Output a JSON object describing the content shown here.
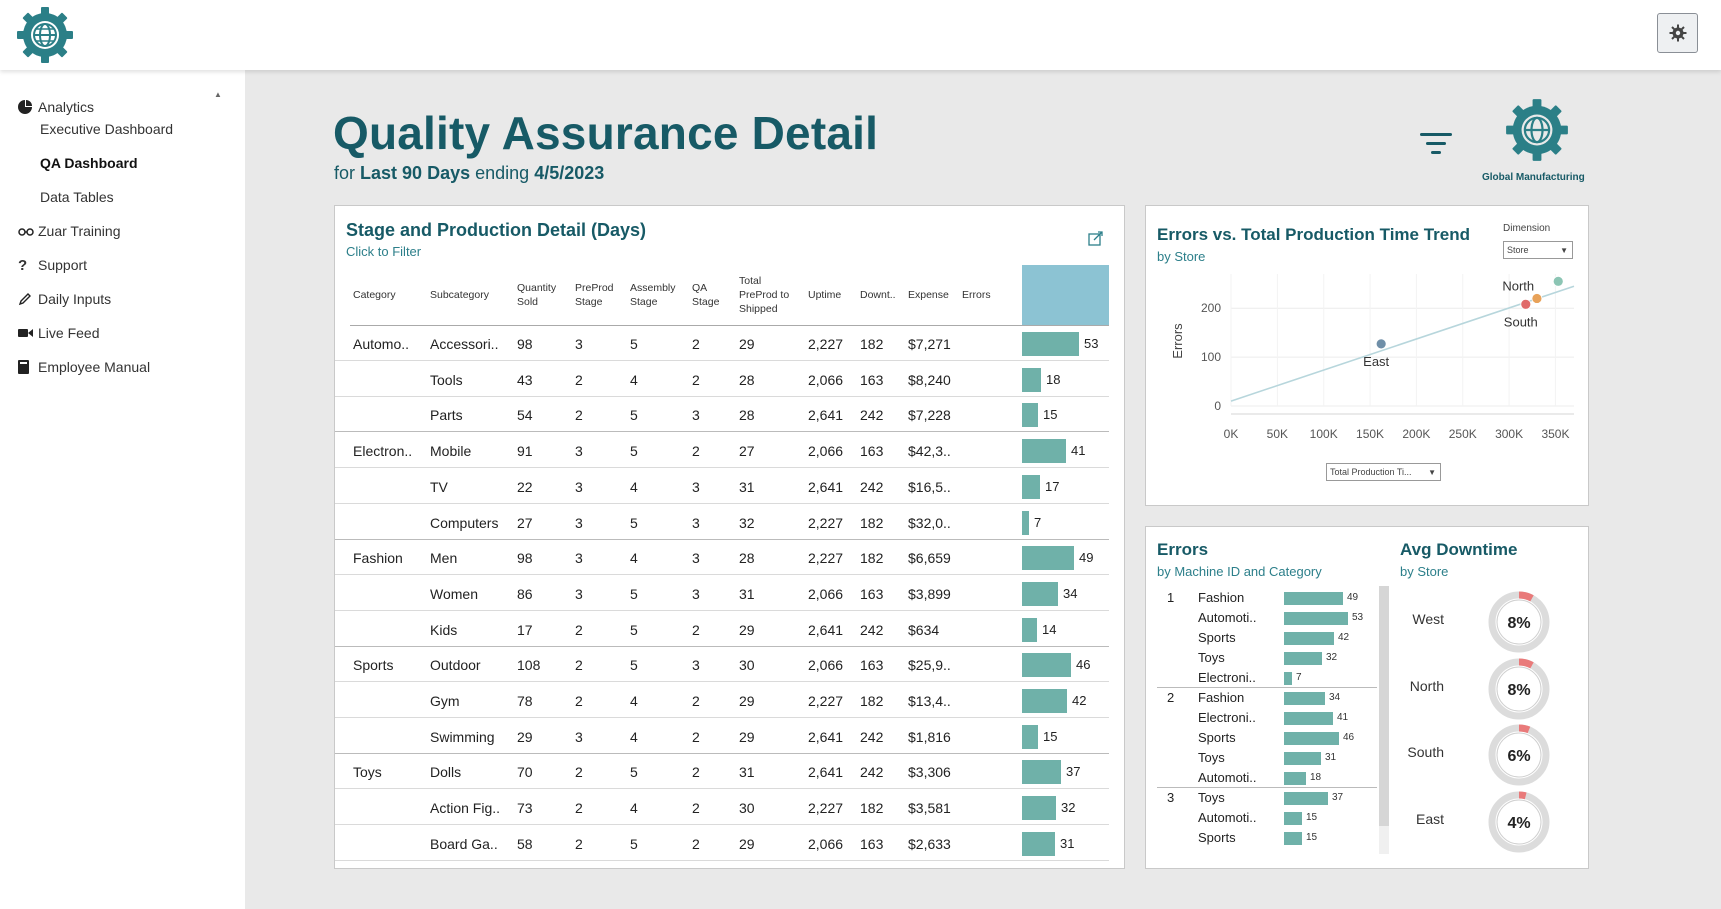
{
  "sidebar": {
    "items": [
      {
        "label": "Analytics",
        "icon": "pie-chart-icon"
      },
      {
        "label": "Executive Dashboard"
      },
      {
        "label": "QA Dashboard"
      },
      {
        "label": "Data Tables"
      },
      {
        "label": "Zuar Training",
        "icon": "glasses-icon"
      },
      {
        "label": "Support",
        "icon": "question-icon"
      },
      {
        "label": "Daily Inputs",
        "icon": "pencil-icon"
      },
      {
        "label": "Live Feed",
        "icon": "video-icon"
      },
      {
        "label": "Employee Manual",
        "icon": "book-icon"
      }
    ]
  },
  "page": {
    "title": "Quality Assurance Detail",
    "subtitle_for": "for",
    "subtitle_period": "Last 90 Days",
    "subtitle_ending": "ending",
    "subtitle_date": "4/5/2023",
    "brand": "Global Manufacturing"
  },
  "stage_panel": {
    "title": "Stage and Production Detail (Days)",
    "subtitle": "Click to Filter",
    "headers": [
      "Category",
      "Subcategory",
      "Quantity Sold",
      "PreProd Stage",
      "Assembly Stage",
      "QA Stage",
      "Total PreProd to Shipped",
      "Uptime",
      "Downt..",
      "Expense",
      "Errors"
    ],
    "rows": [
      {
        "category": "Automo..",
        "sub": "Accessori..",
        "qty": "98",
        "pre": "3",
        "asm": "5",
        "qa": "2",
        "total": "29",
        "uptime": "2,227",
        "down": "182",
        "expense": "$7,271",
        "errors": 53
      },
      {
        "category": "",
        "sub": "Tools",
        "qty": "43",
        "pre": "2",
        "asm": "4",
        "qa": "2",
        "total": "28",
        "uptime": "2,066",
        "down": "163",
        "expense": "$8,240",
        "errors": 18
      },
      {
        "category": "",
        "sub": "Parts",
        "qty": "54",
        "pre": "2",
        "asm": "5",
        "qa": "3",
        "total": "28",
        "uptime": "2,641",
        "down": "242",
        "expense": "$7,228",
        "errors": 15
      },
      {
        "category": "Electron..",
        "sub": "Mobile",
        "qty": "91",
        "pre": "3",
        "asm": "5",
        "qa": "2",
        "total": "27",
        "uptime": "2,066",
        "down": "163",
        "expense": "$42,3..",
        "errors": 41
      },
      {
        "category": "",
        "sub": "TV",
        "qty": "22",
        "pre": "3",
        "asm": "4",
        "qa": "3",
        "total": "31",
        "uptime": "2,641",
        "down": "242",
        "expense": "$16,5..",
        "errors": 17
      },
      {
        "category": "",
        "sub": "Computers",
        "qty": "27",
        "pre": "3",
        "asm": "5",
        "qa": "3",
        "total": "32",
        "uptime": "2,227",
        "down": "182",
        "expense": "$32,0..",
        "errors": 7
      },
      {
        "category": "Fashion",
        "sub": "Men",
        "qty": "98",
        "pre": "3",
        "asm": "4",
        "qa": "3",
        "total": "28",
        "uptime": "2,227",
        "down": "182",
        "expense": "$6,659",
        "errors": 49
      },
      {
        "category": "",
        "sub": "Women",
        "qty": "86",
        "pre": "3",
        "asm": "5",
        "qa": "3",
        "total": "31",
        "uptime": "2,066",
        "down": "163",
        "expense": "$3,899",
        "errors": 34
      },
      {
        "category": "",
        "sub": "Kids",
        "qty": "17",
        "pre": "2",
        "asm": "5",
        "qa": "2",
        "total": "29",
        "uptime": "2,641",
        "down": "242",
        "expense": "$634",
        "errors": 14
      },
      {
        "category": "Sports",
        "sub": "Outdoor",
        "qty": "108",
        "pre": "2",
        "asm": "5",
        "qa": "3",
        "total": "30",
        "uptime": "2,066",
        "down": "163",
        "expense": "$25,9..",
        "errors": 46
      },
      {
        "category": "",
        "sub": "Gym",
        "qty": "78",
        "pre": "2",
        "asm": "4",
        "qa": "2",
        "total": "29",
        "uptime": "2,227",
        "down": "182",
        "expense": "$13,4..",
        "errors": 42
      },
      {
        "category": "",
        "sub": "Swimming",
        "qty": "29",
        "pre": "3",
        "asm": "4",
        "qa": "2",
        "total": "29",
        "uptime": "2,641",
        "down": "242",
        "expense": "$1,816",
        "errors": 15
      },
      {
        "category": "Toys",
        "sub": "Dolls",
        "qty": "70",
        "pre": "2",
        "asm": "5",
        "qa": "2",
        "total": "31",
        "uptime": "2,641",
        "down": "242",
        "expense": "$3,306",
        "errors": 37
      },
      {
        "category": "",
        "sub": "Action Fig..",
        "qty": "73",
        "pre": "2",
        "asm": "4",
        "qa": "2",
        "total": "30",
        "uptime": "2,227",
        "down": "182",
        "expense": "$3,581",
        "errors": 32
      },
      {
        "category": "",
        "sub": "Board Ga..",
        "qty": "58",
        "pre": "2",
        "asm": "5",
        "qa": "2",
        "total": "29",
        "uptime": "2,066",
        "down": "163",
        "expense": "$2,633",
        "errors": 31
      }
    ]
  },
  "trend_panel": {
    "title": "Errors vs. Total Production Time Trend",
    "subtitle": "by Store",
    "dimension_label": "Dimension",
    "dimension_value": "Store",
    "measure_value": "Total Production Ti..."
  },
  "chart_data": [
    {
      "type": "scatter",
      "title": "Errors vs. Total Production Time Trend",
      "ylabel": "Errors",
      "xticks": [
        "0K",
        "50K",
        "100K",
        "150K",
        "200K",
        "250K",
        "300K",
        "350K"
      ],
      "yticks": [
        "0",
        "100",
        "200"
      ],
      "xlim": [
        0,
        370000
      ],
      "ylim": [
        0,
        270
      ],
      "points": [
        {
          "label": "North",
          "x": 353000,
          "y": 255,
          "color": "#8cc5b4"
        },
        {
          "label": "",
          "x": 330000,
          "y": 220,
          "color": "#e8a25a"
        },
        {
          "label": "South",
          "x": 318000,
          "y": 208,
          "color": "#e06a6a"
        },
        {
          "label": "East",
          "x": 162000,
          "y": 127,
          "color": "#6f8fa8"
        }
      ],
      "trend": {
        "x0": 0,
        "y0": 10,
        "x1": 370000,
        "y1": 245
      }
    },
    {
      "type": "bar",
      "title": "Errors",
      "subtitle": "by Machine ID and Category",
      "xlim": [
        0,
        60
      ],
      "groups": [
        {
          "id": "1",
          "items": [
            {
              "label": "Fashion",
              "value": 49
            },
            {
              "label": "Automoti..",
              "value": 53
            },
            {
              "label": "Sports",
              "value": 42
            },
            {
              "label": "Toys",
              "value": 32
            },
            {
              "label": "Electroni..",
              "value": 7
            }
          ]
        },
        {
          "id": "2",
          "items": [
            {
              "label": "Fashion",
              "value": 34
            },
            {
              "label": "Electroni..",
              "value": 41
            },
            {
              "label": "Sports",
              "value": 46
            },
            {
              "label": "Toys",
              "value": 31
            },
            {
              "label": "Automoti..",
              "value": 18
            }
          ]
        },
        {
          "id": "3",
          "items": [
            {
              "label": "Toys",
              "value": 37
            },
            {
              "label": "Automoti..",
              "value": 15
            },
            {
              "label": "Sports",
              "value": 15
            }
          ]
        }
      ]
    },
    {
      "type": "pie",
      "title": "Avg Downtime",
      "subtitle": "by Store",
      "items": [
        {
          "label": "West",
          "value": 8,
          "text": "8%"
        },
        {
          "label": "North",
          "value": 8,
          "text": "8%"
        },
        {
          "label": "South",
          "value": 6,
          "text": "6%"
        },
        {
          "label": "East",
          "value": 4,
          "text": "4%"
        }
      ]
    }
  ],
  "colors": {
    "accent": "#175a66",
    "bar": "#6fb1a9",
    "header_highlight": "#8cc3d3",
    "ring_track": "#dcdcdc",
    "ring_fill": "#e97a7a"
  }
}
